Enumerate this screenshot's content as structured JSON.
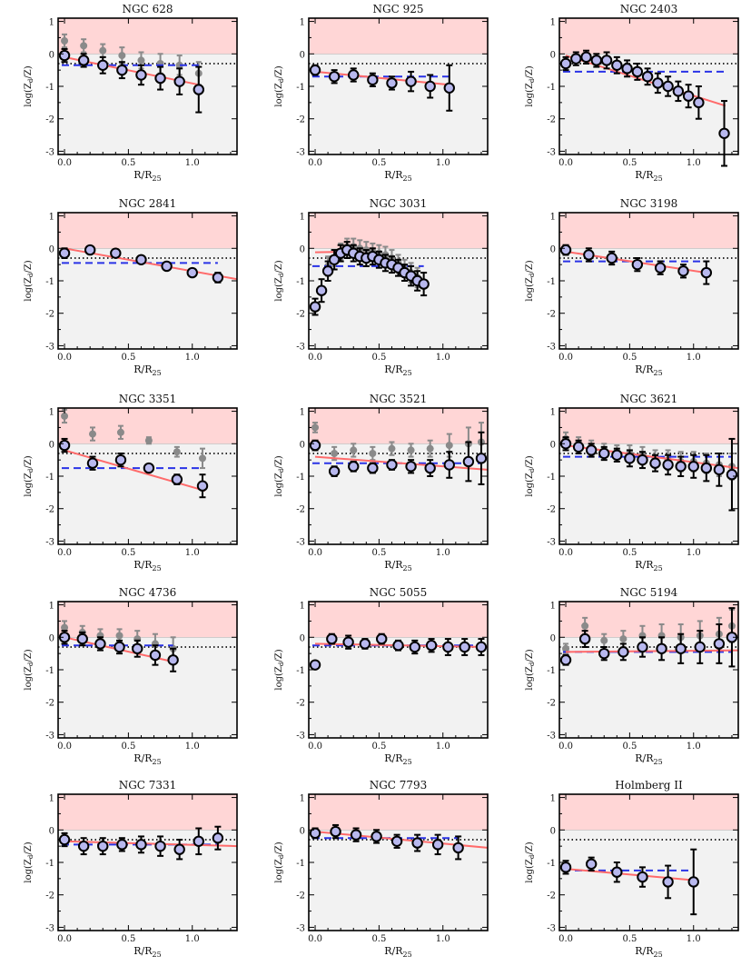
{
  "figure": {
    "xlabel": "R/R25",
    "ylabel": "log(Zd/Z)"
  },
  "colors": {
    "panel_bg": "#f2f2f2",
    "upper_band": "#ffd6d6",
    "fit_line": "#ff6b6b",
    "dashed_line": "#2a33e6",
    "dotted_line": "#111111",
    "point_fill": "#b8b8ee",
    "gray_points": "#8a8a8a"
  },
  "chart_data": [
    {
      "type": "scatter",
      "title": "NGC 628",
      "xlim": [
        -0.05,
        1.35
      ],
      "ylim": [
        -3.1,
        1.1
      ],
      "dashed_y": -0.35,
      "dotted_y": -0.3,
      "fit": {
        "x": [
          0.0,
          1.05
        ],
        "y": [
          -0.1,
          -0.95
        ]
      },
      "points": {
        "x": [
          0.0,
          0.15,
          0.3,
          0.45,
          0.6,
          0.75,
          0.9,
          1.05
        ],
        "y": [
          -0.05,
          -0.2,
          -0.35,
          -0.5,
          -0.65,
          -0.75,
          -0.85,
          -1.1
        ],
        "err": [
          0.2,
          0.2,
          0.25,
          0.25,
          0.3,
          0.35,
          0.4,
          0.7
        ]
      },
      "gray": {
        "x": [
          0.0,
          0.15,
          0.3,
          0.45,
          0.6,
          0.75,
          0.9,
          1.05
        ],
        "y": [
          0.4,
          0.25,
          0.1,
          -0.05,
          -0.2,
          -0.3,
          -0.35,
          -0.6
        ],
        "err": [
          0.2,
          0.2,
          0.2,
          0.25,
          0.25,
          0.3,
          0.3,
          0.35
        ]
      }
    },
    {
      "type": "scatter",
      "title": "NGC 925",
      "xlim": [
        -0.05,
        1.35
      ],
      "ylim": [
        -3.1,
        1.1
      ],
      "dashed_y": -0.7,
      "dotted_y": -0.3,
      "fit": {
        "x": [
          0.0,
          1.05
        ],
        "y": [
          -0.55,
          -0.95
        ]
      },
      "points": {
        "x": [
          0.0,
          0.15,
          0.3,
          0.45,
          0.6,
          0.75,
          0.9,
          1.05
        ],
        "y": [
          -0.5,
          -0.7,
          -0.65,
          -0.8,
          -0.9,
          -0.85,
          -1.0,
          -1.05
        ],
        "err": [
          0.15,
          0.2,
          0.2,
          0.2,
          0.2,
          0.3,
          0.35,
          0.7
        ]
      },
      "gray": null
    },
    {
      "type": "scatter",
      "title": "NGC 2403",
      "xlim": [
        -0.05,
        1.35
      ],
      "ylim": [
        -3.1,
        1.1
      ],
      "dashed_y": -0.55,
      "dotted_y": -0.3,
      "fit": {
        "x": [
          0.0,
          1.25
        ],
        "y": [
          -0.05,
          -1.6
        ]
      },
      "points": {
        "x": [
          0.0,
          0.08,
          0.16,
          0.24,
          0.32,
          0.4,
          0.48,
          0.56,
          0.64,
          0.72,
          0.8,
          0.88,
          0.96,
          1.04,
          1.24
        ],
        "y": [
          -0.3,
          -0.15,
          -0.1,
          -0.2,
          -0.2,
          -0.35,
          -0.45,
          -0.55,
          -0.7,
          -0.9,
          -1.0,
          -1.15,
          -1.3,
          -1.5,
          -2.45
        ],
        "err": [
          0.2,
          0.2,
          0.2,
          0.2,
          0.25,
          0.25,
          0.25,
          0.25,
          0.25,
          0.3,
          0.3,
          0.3,
          0.35,
          0.5,
          1.0
        ]
      },
      "gray": null
    },
    {
      "type": "scatter",
      "title": "NGC 2841",
      "xlim": [
        -0.05,
        1.35
      ],
      "ylim": [
        -3.1,
        1.1
      ],
      "dashed_y": -0.45,
      "dotted_y": -0.3,
      "fit": {
        "x": [
          0.0,
          1.35
        ],
        "y": [
          0.0,
          -0.95
        ]
      },
      "points": {
        "x": [
          0.0,
          0.2,
          0.4,
          0.6,
          0.8,
          1.0,
          1.2
        ],
        "y": [
          -0.15,
          -0.05,
          -0.15,
          -0.35,
          -0.55,
          -0.75,
          -0.9
        ],
        "err": [
          0.15,
          0.1,
          0.1,
          0.1,
          0.1,
          0.1,
          0.15
        ]
      },
      "gray": null
    },
    {
      "type": "scatter",
      "title": "NGC 3031",
      "xlim": [
        -0.05,
        1.35
      ],
      "ylim": [
        -3.1,
        1.1
      ],
      "dashed_y": -0.55,
      "dotted_y": -0.3,
      "fit": {
        "x": [
          0.0,
          0.3,
          0.45,
          0.6,
          0.85
        ],
        "y": [
          -0.12,
          -0.1,
          -0.2,
          -0.4,
          -1.05
        ]
      },
      "points": {
        "x": [
          0.0,
          0.05,
          0.1,
          0.15,
          0.2,
          0.25,
          0.3,
          0.35,
          0.4,
          0.45,
          0.5,
          0.55,
          0.6,
          0.65,
          0.7,
          0.75,
          0.8,
          0.85
        ],
        "y": [
          -1.8,
          -1.3,
          -0.7,
          -0.35,
          -0.15,
          -0.05,
          -0.15,
          -0.25,
          -0.3,
          -0.25,
          -0.35,
          -0.45,
          -0.5,
          -0.6,
          -0.75,
          -0.85,
          -1.0,
          -1.1
        ],
        "err": [
          0.25,
          0.35,
          0.3,
          0.3,
          0.25,
          0.25,
          0.25,
          0.25,
          0.25,
          0.25,
          0.25,
          0.25,
          0.25,
          0.25,
          0.25,
          0.3,
          0.3,
          0.35
        ]
      },
      "gray": {
        "x": [
          0.1,
          0.15,
          0.2,
          0.25,
          0.3,
          0.35,
          0.4,
          0.45,
          0.5,
          0.55,
          0.6,
          0.65,
          0.7,
          0.75,
          0.8
        ],
        "y": [
          -0.55,
          -0.3,
          -0.1,
          0.05,
          0.05,
          0.0,
          -0.05,
          -0.1,
          -0.15,
          -0.2,
          -0.3,
          -0.45,
          -0.6,
          -0.75,
          -0.9
        ],
        "err": [
          0.3,
          0.25,
          0.25,
          0.25,
          0.25,
          0.25,
          0.25,
          0.25,
          0.25,
          0.25,
          0.25,
          0.25,
          0.25,
          0.3,
          0.3
        ]
      }
    },
    {
      "type": "scatter",
      "title": "NGC 3198",
      "xlim": [
        -0.05,
        1.35
      ],
      "ylim": [
        -3.1,
        1.1
      ],
      "dashed_y": -0.4,
      "dotted_y": -0.3,
      "fit": {
        "x": [
          0.0,
          1.1
        ],
        "y": [
          -0.1,
          -0.75
        ]
      },
      "points": {
        "x": [
          0.0,
          0.18,
          0.36,
          0.56,
          0.74,
          0.92,
          1.1
        ],
        "y": [
          -0.05,
          -0.2,
          -0.3,
          -0.5,
          -0.6,
          -0.7,
          -0.75
        ],
        "err": [
          0.15,
          0.2,
          0.2,
          0.2,
          0.2,
          0.2,
          0.35
        ]
      },
      "gray": null
    },
    {
      "type": "scatter",
      "title": "NGC 3351",
      "xlim": [
        -0.05,
        1.35
      ],
      "ylim": [
        -3.1,
        1.1
      ],
      "dashed_y": -0.75,
      "dotted_y": -0.3,
      "fit": {
        "x": [
          0.0,
          1.1
        ],
        "y": [
          -0.2,
          -1.45
        ]
      },
      "points": {
        "x": [
          0.0,
          0.22,
          0.44,
          0.66,
          0.88,
          1.08
        ],
        "y": [
          -0.05,
          -0.6,
          -0.5,
          -0.75,
          -1.1,
          -1.3
        ],
        "err": [
          0.2,
          0.2,
          0.2,
          0.1,
          0.15,
          0.35
        ]
      },
      "gray": {
        "x": [
          0.0,
          0.22,
          0.44,
          0.66,
          0.88,
          1.08
        ],
        "y": [
          0.85,
          0.3,
          0.35,
          0.1,
          -0.25,
          -0.45
        ],
        "err": [
          0.2,
          0.2,
          0.2,
          0.1,
          0.15,
          0.3
        ]
      }
    },
    {
      "type": "scatter",
      "title": "NGC 3521",
      "xlim": [
        -0.05,
        1.35
      ],
      "ylim": [
        -3.1,
        1.1
      ],
      "dashed_y": -0.6,
      "dotted_y": -0.3,
      "fit": {
        "x": [
          0.0,
          1.35
        ],
        "y": [
          -0.4,
          -0.8
        ]
      },
      "points": {
        "x": [
          0.0,
          0.15,
          0.3,
          0.45,
          0.6,
          0.75,
          0.9,
          1.05,
          1.2,
          1.3
        ],
        "y": [
          -0.05,
          -0.85,
          -0.7,
          -0.75,
          -0.65,
          -0.7,
          -0.75,
          -0.65,
          -0.55,
          -0.45
        ],
        "err": [
          0.15,
          0.15,
          0.15,
          0.15,
          0.15,
          0.2,
          0.25,
          0.4,
          0.6,
          0.8
        ]
      },
      "gray": {
        "x": [
          0.0,
          0.15,
          0.3,
          0.45,
          0.6,
          0.75,
          0.9,
          1.05,
          1.2,
          1.3
        ],
        "y": [
          0.5,
          -0.3,
          -0.2,
          -0.3,
          -0.15,
          -0.2,
          -0.15,
          -0.05,
          0.0,
          0.05
        ],
        "err": [
          0.15,
          0.2,
          0.2,
          0.2,
          0.2,
          0.2,
          0.25,
          0.35,
          0.5,
          0.6
        ]
      }
    },
    {
      "type": "scatter",
      "title": "NGC 3621",
      "xlim": [
        -0.05,
        1.35
      ],
      "ylim": [
        -3.1,
        1.1
      ],
      "dashed_y": -0.4,
      "dotted_y": -0.3,
      "fit": {
        "x": [
          0.0,
          1.35
        ],
        "y": [
          -0.05,
          -0.75
        ]
      },
      "points": {
        "x": [
          0.0,
          0.1,
          0.2,
          0.3,
          0.4,
          0.5,
          0.6,
          0.7,
          0.8,
          0.9,
          1.0,
          1.1,
          1.2,
          1.3
        ],
        "y": [
          0.0,
          -0.1,
          -0.2,
          -0.3,
          -0.35,
          -0.45,
          -0.5,
          -0.6,
          -0.65,
          -0.7,
          -0.7,
          -0.75,
          -0.8,
          -0.95
        ],
        "err": [
          0.2,
          0.2,
          0.2,
          0.2,
          0.2,
          0.25,
          0.25,
          0.25,
          0.3,
          0.3,
          0.35,
          0.4,
          0.5,
          1.1
        ]
      },
      "gray": {
        "x": [
          0.0,
          0.1,
          0.2,
          0.3,
          0.4,
          0.5,
          0.6,
          0.7,
          0.8,
          0.9,
          1.0,
          1.1,
          1.2,
          1.3
        ],
        "y": [
          0.15,
          0.0,
          -0.1,
          -0.2,
          -0.25,
          -0.3,
          -0.35,
          -0.45,
          -0.5,
          -0.55,
          -0.55,
          -0.6,
          -0.65,
          -0.7
        ],
        "err": [
          0.2,
          0.2,
          0.2,
          0.2,
          0.2,
          0.25,
          0.25,
          0.25,
          0.3,
          0.3,
          0.3,
          0.3,
          0.35,
          0.4
        ]
      }
    },
    {
      "type": "scatter",
      "title": "NGC 4736",
      "xlim": [
        -0.05,
        1.35
      ],
      "ylim": [
        -3.1,
        1.1
      ],
      "dashed_y": -0.25,
      "dotted_y": -0.3,
      "fit": {
        "x": [
          0.0,
          0.85
        ],
        "y": [
          0.0,
          -0.75
        ]
      },
      "points": {
        "x": [
          0.0,
          0.14,
          0.28,
          0.43,
          0.57,
          0.71,
          0.85
        ],
        "y": [
          0.0,
          -0.05,
          -0.2,
          -0.3,
          -0.35,
          -0.55,
          -0.7
        ],
        "err": [
          0.2,
          0.2,
          0.2,
          0.2,
          0.25,
          0.3,
          0.35
        ]
      },
      "gray": {
        "x": [
          0.0,
          0.14,
          0.28,
          0.43,
          0.57,
          0.71,
          0.85
        ],
        "y": [
          0.3,
          0.15,
          0.05,
          0.05,
          -0.05,
          -0.2,
          -0.35
        ],
        "err": [
          0.2,
          0.2,
          0.2,
          0.2,
          0.25,
          0.3,
          0.35
        ]
      }
    },
    {
      "type": "scatter",
      "title": "NGC 5055",
      "xlim": [
        -0.05,
        1.35
      ],
      "ylim": [
        -3.1,
        1.1
      ],
      "dashed_y": -0.25,
      "dotted_y": -0.3,
      "fit": {
        "x": [
          0.0,
          1.35
        ],
        "y": [
          -0.2,
          -0.3
        ]
      },
      "points": {
        "x": [
          0.0,
          0.13,
          0.26,
          0.39,
          0.52,
          0.65,
          0.78,
          0.91,
          1.04,
          1.17,
          1.3
        ],
        "y": [
          -0.85,
          -0.05,
          -0.15,
          -0.2,
          -0.05,
          -0.25,
          -0.3,
          -0.25,
          -0.3,
          -0.3,
          -0.3
        ],
        "err": [
          0.1,
          0.15,
          0.2,
          0.15,
          0.15,
          0.15,
          0.2,
          0.2,
          0.25,
          0.25,
          0.25
        ]
      },
      "gray": null
    },
    {
      "type": "scatter",
      "title": "NGC 5194",
      "xlim": [
        -0.05,
        1.35
      ],
      "ylim": [
        -3.1,
        1.1
      ],
      "dashed_y": -0.45,
      "dotted_y": -0.3,
      "fit": {
        "x": [
          0.0,
          1.35
        ],
        "y": [
          -0.45,
          -0.4
        ]
      },
      "points": {
        "x": [
          0.0,
          0.15,
          0.3,
          0.45,
          0.6,
          0.75,
          0.9,
          1.05,
          1.2,
          1.3
        ],
        "y": [
          -0.7,
          -0.05,
          -0.5,
          -0.45,
          -0.3,
          -0.35,
          -0.35,
          -0.3,
          -0.2,
          0.0
        ],
        "err": [
          0.15,
          0.25,
          0.2,
          0.25,
          0.3,
          0.35,
          0.45,
          0.5,
          0.6,
          0.9
        ]
      },
      "gray": {
        "x": [
          0.0,
          0.15,
          0.3,
          0.45,
          0.6,
          0.75,
          0.9,
          1.05,
          1.2,
          1.3
        ],
        "y": [
          -0.35,
          0.35,
          -0.1,
          -0.05,
          0.05,
          0.05,
          0.0,
          0.05,
          0.1,
          0.35
        ],
        "err": [
          0.15,
          0.25,
          0.2,
          0.25,
          0.3,
          0.35,
          0.4,
          0.45,
          0.5,
          0.5
        ]
      }
    },
    {
      "type": "scatter",
      "title": "NGC 7331",
      "xlim": [
        -0.05,
        1.35
      ],
      "ylim": [
        -3.1,
        1.1
      ],
      "dashed_y": -0.45,
      "dotted_y": -0.3,
      "fit": {
        "x": [
          0.0,
          1.35
        ],
        "y": [
          -0.35,
          -0.5
        ]
      },
      "points": {
        "x": [
          0.0,
          0.15,
          0.3,
          0.45,
          0.6,
          0.75,
          0.9,
          1.05,
          1.2
        ],
        "y": [
          -0.3,
          -0.5,
          -0.5,
          -0.45,
          -0.45,
          -0.5,
          -0.6,
          -0.35,
          -0.25
        ],
        "err": [
          0.2,
          0.25,
          0.25,
          0.2,
          0.25,
          0.3,
          0.3,
          0.4,
          0.35
        ]
      },
      "gray": null
    },
    {
      "type": "scatter",
      "title": "NGC 7793",
      "xlim": [
        -0.05,
        1.35
      ],
      "ylim": [
        -3.1,
        1.1
      ],
      "dashed_y": -0.25,
      "dotted_y": -0.3,
      "fit": {
        "x": [
          0.0,
          1.35
        ],
        "y": [
          -0.05,
          -0.55
        ]
      },
      "points": {
        "x": [
          0.0,
          0.16,
          0.32,
          0.48,
          0.64,
          0.8,
          0.96,
          1.12
        ],
        "y": [
          -0.1,
          -0.05,
          -0.15,
          -0.2,
          -0.35,
          -0.4,
          -0.45,
          -0.55
        ],
        "err": [
          0.15,
          0.2,
          0.2,
          0.2,
          0.2,
          0.25,
          0.3,
          0.35
        ]
      },
      "gray": null
    },
    {
      "type": "scatter",
      "title": "Holmberg II",
      "xlim": [
        -0.05,
        1.35
      ],
      "ylim": [
        -3.1,
        1.1
      ],
      "dashed_y": -1.25,
      "dotted_y": -0.3,
      "fit": {
        "x": [
          0.0,
          1.0
        ],
        "y": [
          -1.2,
          -1.55
        ]
      },
      "points": {
        "x": [
          0.0,
          0.2,
          0.4,
          0.6,
          0.8,
          1.0
        ],
        "y": [
          -1.15,
          -1.05,
          -1.3,
          -1.45,
          -1.6,
          -1.6
        ],
        "err": [
          0.2,
          0.2,
          0.3,
          0.3,
          0.5,
          1.0
        ]
      },
      "gray": null
    }
  ]
}
